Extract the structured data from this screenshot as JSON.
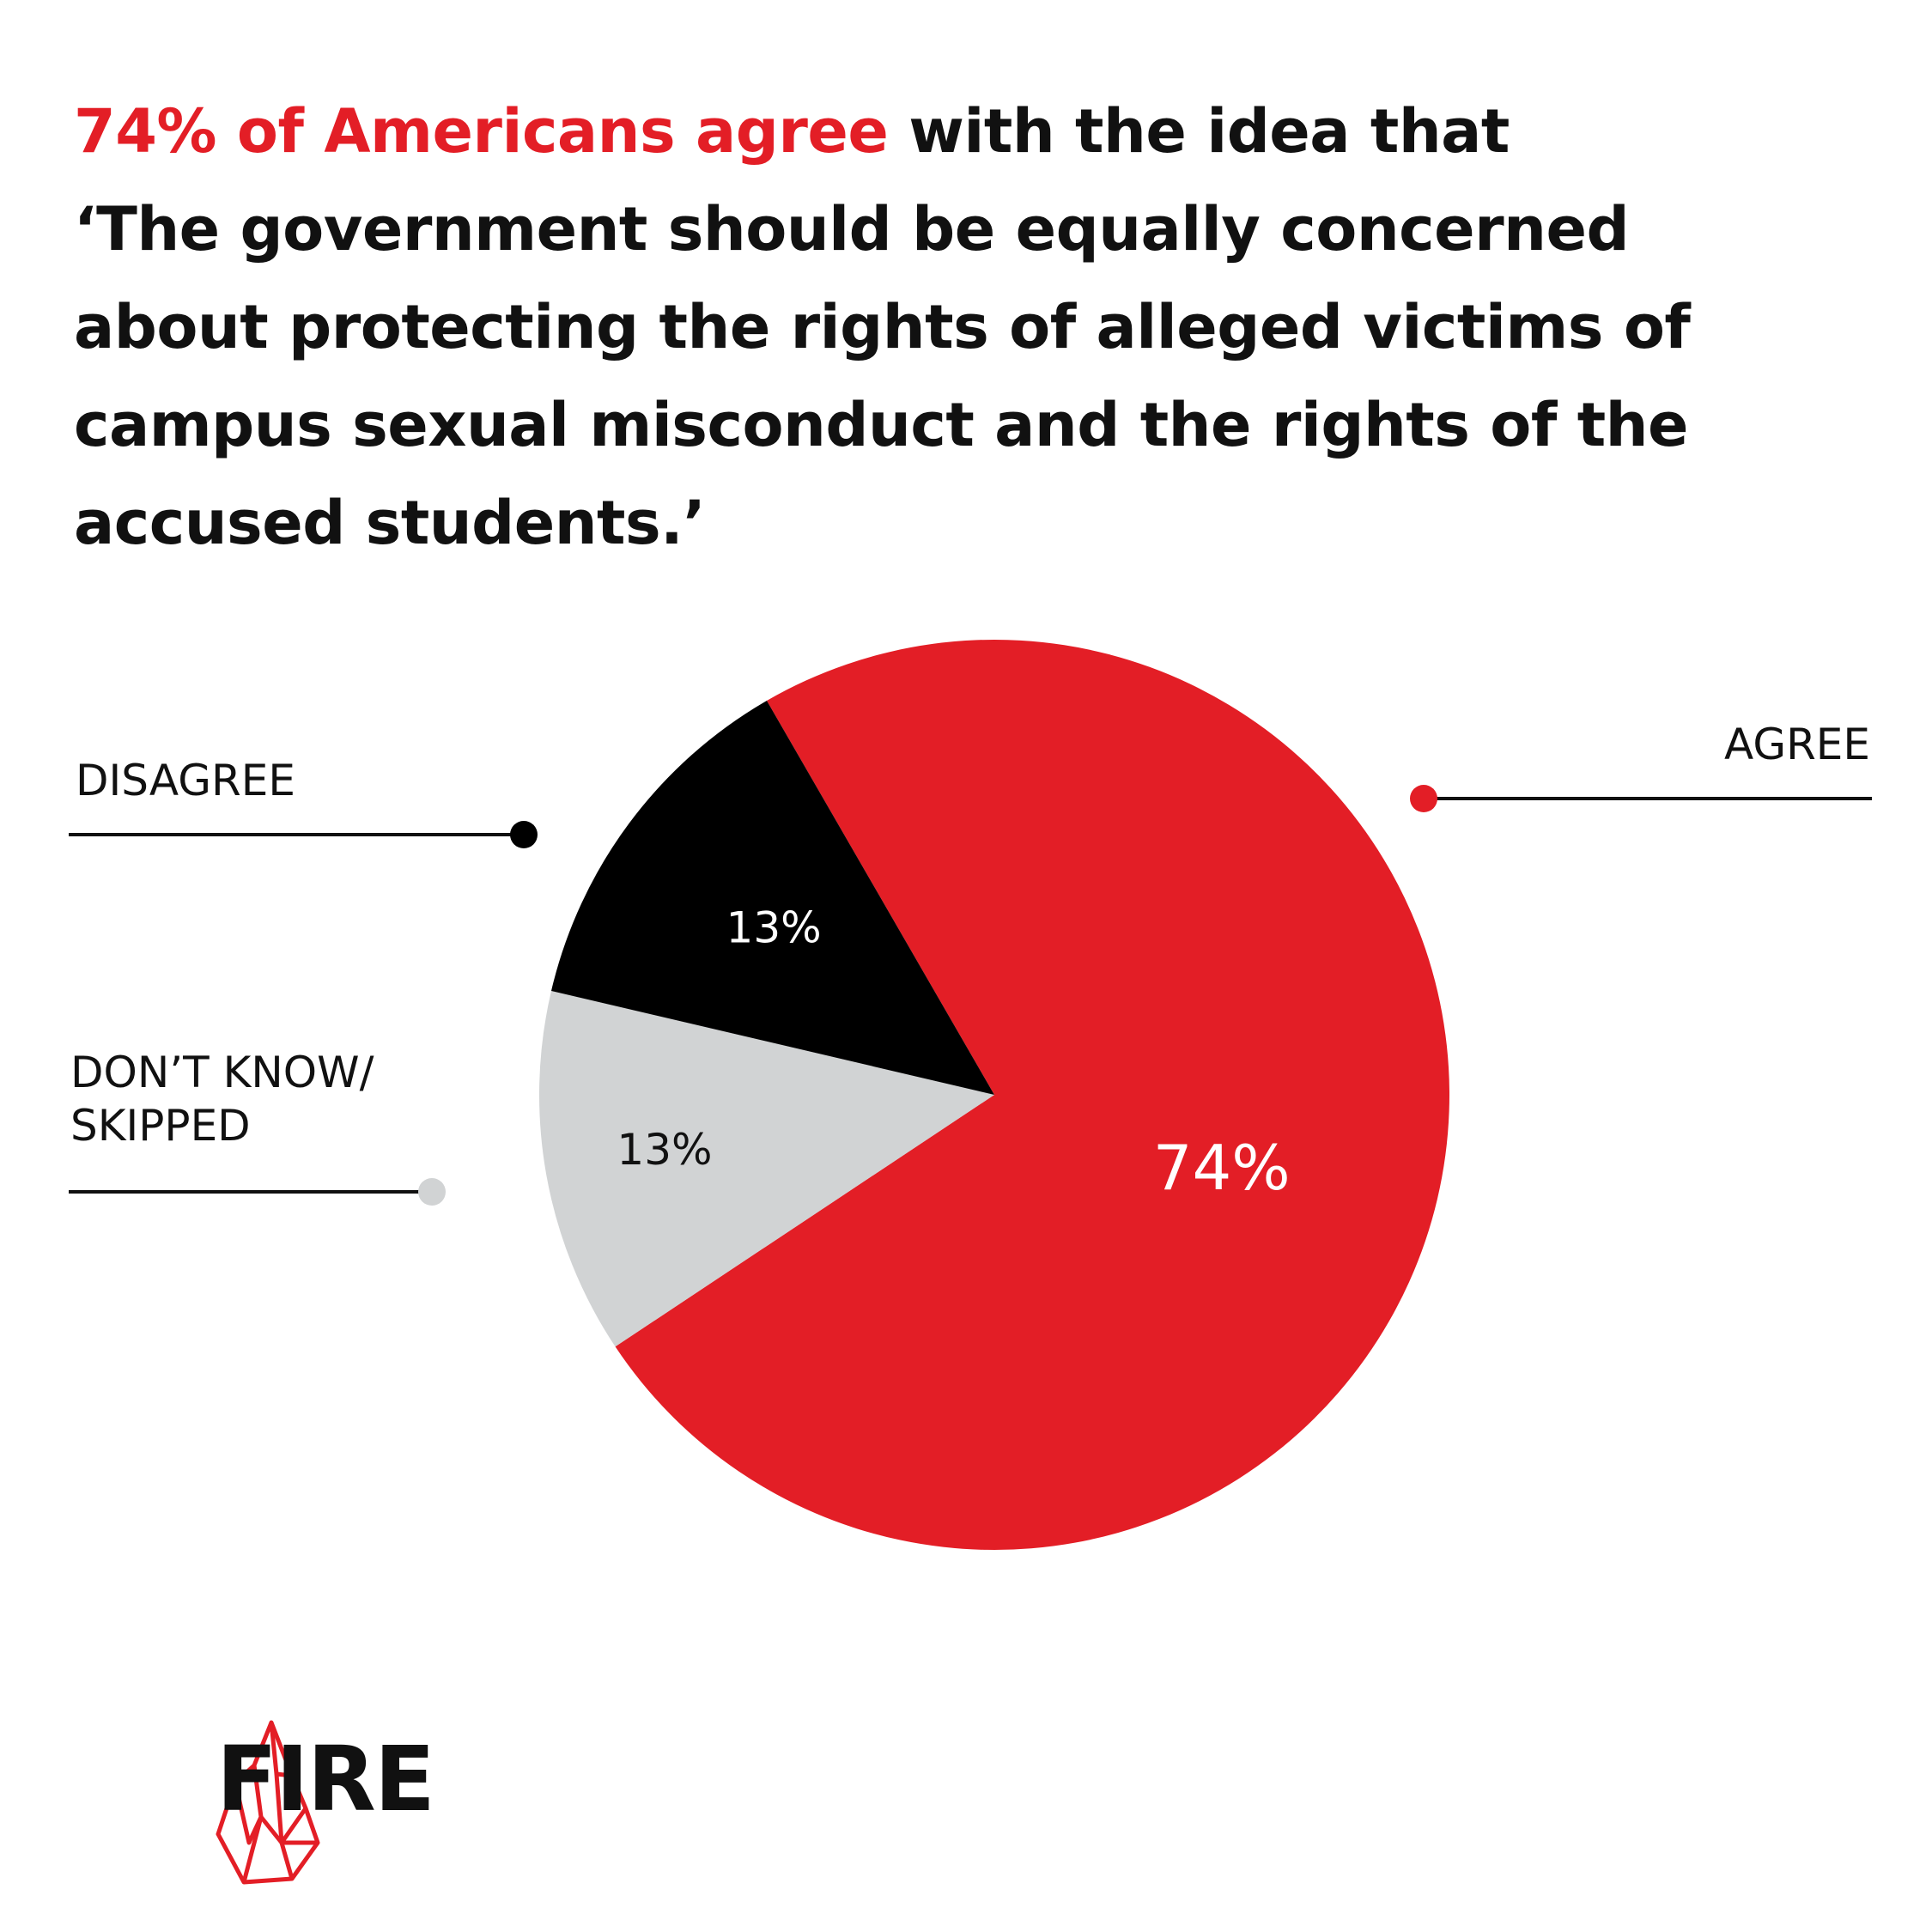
{
  "headline": {
    "highlight": "74% of Americans agree",
    "line1_rest": " with the idea that",
    "line2": "‘The government should be equally concerned",
    "line3": "about protecting the rights of alleged victims of",
    "line4": "campus sexual misconduct and the rights of the",
    "line5": "accused students.’"
  },
  "colors": {
    "accent": "#e31e26",
    "dark": "#000000",
    "gray": "#d1d3d4"
  },
  "chart_data": {
    "type": "pie",
    "title": "",
    "slices": [
      {
        "label": "AGREE",
        "value": 74,
        "display": "74%",
        "color": "#e31e26",
        "label_color": "#ffffff"
      },
      {
        "label": "DON’T KNOW/\nSKIPPED",
        "value": 13,
        "display": "13%",
        "color": "#d1d3d4",
        "label_color": "#111111"
      },
      {
        "label": "DISAGREE",
        "value": 13,
        "display": "13%",
        "color": "#000000",
        "label_color": "#ffffff"
      }
    ],
    "legend": [
      {
        "text": "AGREE"
      },
      {
        "text": "DISAGREE"
      },
      {
        "text_line1": "DON’T KNOW/",
        "text_line2": "SKIPPED"
      }
    ]
  },
  "logo": {
    "text": "FIRE",
    "icon": "flame-logo-icon"
  }
}
